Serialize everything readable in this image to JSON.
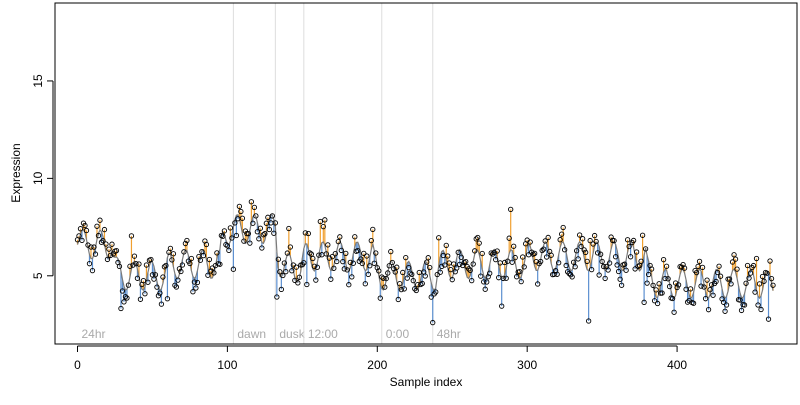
{
  "chart_data": {
    "type": "scatter",
    "xlabel": "Sample index",
    "ylabel": "Expression",
    "xlim": [
      -15,
      480
    ],
    "ylim": [
      1.5,
      19
    ],
    "grid": false,
    "x_ticks": [
      0,
      100,
      200,
      300,
      400
    ],
    "y_ticks": [
      5,
      10,
      15
    ],
    "colors": {
      "frame": "#000000",
      "line": "#7b7b7b",
      "above_segment": "#f0a030",
      "below_segment": "#5b8fd0",
      "point_edge": "#000000",
      "marker_line": "#dddddd",
      "marker_text": "#aaaaaa"
    },
    "markers": [
      {
        "x": 0,
        "label": "24hr"
      },
      {
        "x": 104,
        "label": "dawn"
      },
      {
        "x": 132,
        "label": "dusk"
      },
      {
        "x": 151,
        "label": "12:00"
      },
      {
        "x": 203,
        "label": "0:00"
      },
      {
        "x": 237,
        "label": "48hr"
      }
    ],
    "segments": [
      {
        "start": 0,
        "end": 24,
        "base": 6.6
      },
      {
        "start": 24,
        "end": 60,
        "base": 5.0
      },
      {
        "start": 60,
        "end": 96,
        "base": 5.6
      },
      {
        "start": 96,
        "end": 133,
        "base": 7.4
      },
      {
        "start": 133,
        "end": 150,
        "base": 5.4
      },
      {
        "start": 150,
        "end": 198,
        "base": 6.0
      },
      {
        "start": 198,
        "end": 240,
        "base": 5.0
      },
      {
        "start": 240,
        "end": 300,
        "base": 5.6
      },
      {
        "start": 300,
        "end": 380,
        "base": 6.0
      },
      {
        "start": 380,
        "end": 460,
        "base": 4.6
      },
      {
        "start": 460,
        "end": 465,
        "base": 4.4
      }
    ],
    "n_points": 465
  }
}
